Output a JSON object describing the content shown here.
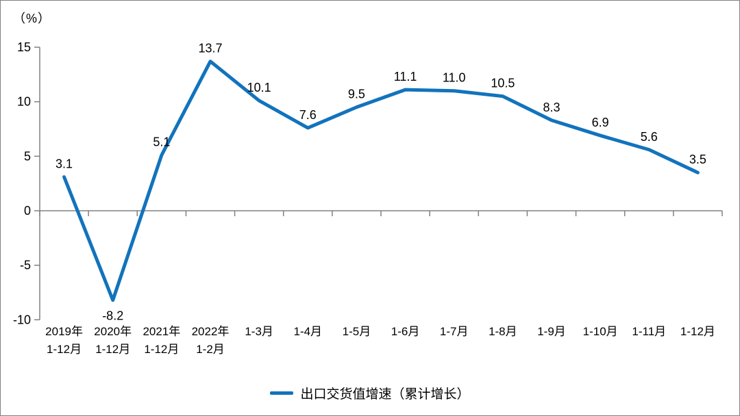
{
  "chart_data": {
    "type": "line",
    "title": "",
    "unit_label": "（%）",
    "legend": "出口交货值增速（累计增长）",
    "legend_position": "bottom",
    "categories": [
      [
        "2019年",
        "1-12月"
      ],
      [
        "2020年",
        "1-12月"
      ],
      [
        "2021年",
        "1-12月"
      ],
      [
        "2022年",
        "1-2月"
      ],
      [
        "1-3月"
      ],
      [
        "1-4月"
      ],
      [
        "1-5月"
      ],
      [
        "1-6月"
      ],
      [
        "1-7月"
      ],
      [
        "1-8月"
      ],
      [
        "1-9月"
      ],
      [
        "1-10月"
      ],
      [
        "1-11月"
      ],
      [
        "1-12月"
      ]
    ],
    "series": [
      {
        "name": "出口交货值增速（累计增长）",
        "values": [
          3.1,
          -8.2,
          5.1,
          13.7,
          10.1,
          7.6,
          9.5,
          11.1,
          11.0,
          10.5,
          8.3,
          6.9,
          5.6,
          3.5
        ]
      }
    ],
    "ylim": [
      -10,
      15
    ],
    "yticks": [
      15,
      10,
      5,
      0,
      -5,
      -10
    ],
    "grid": false,
    "colors": {
      "line": "#1273BC",
      "axis": "#808080",
      "text": "#000000"
    }
  }
}
